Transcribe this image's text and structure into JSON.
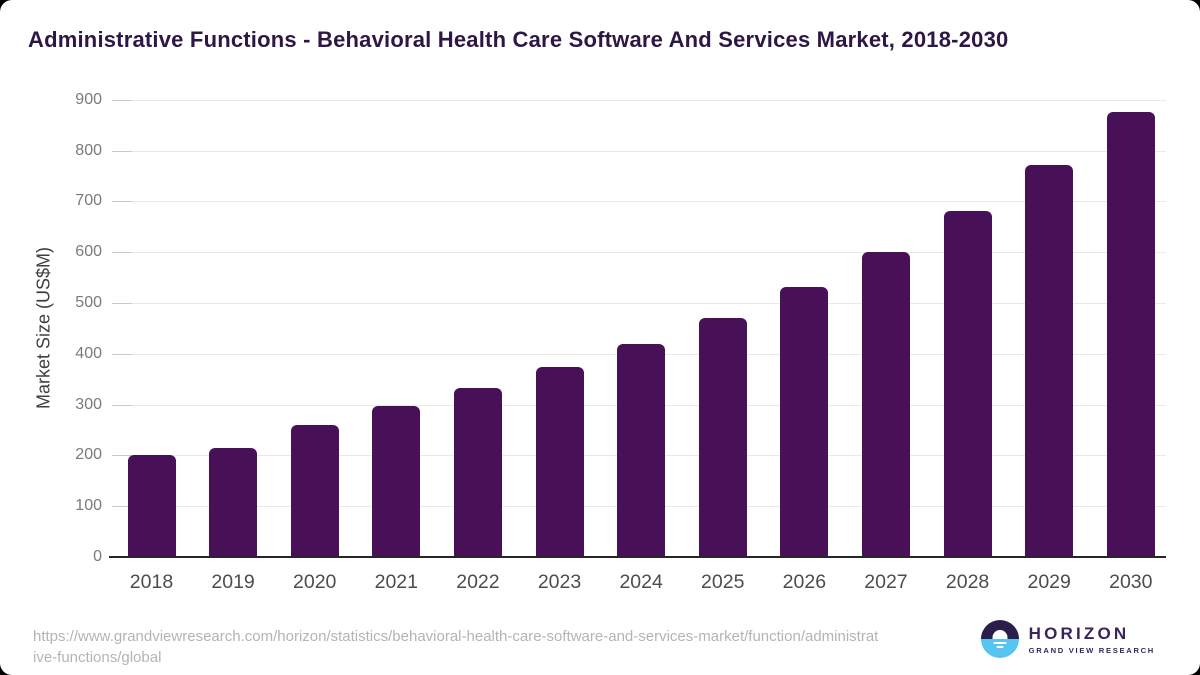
{
  "chart_data": {
    "type": "bar",
    "title": "Administrative Functions - Behavioral Health Care Software And Services Market, 2018-2030",
    "categories": [
      "2018",
      "2019",
      "2020",
      "2021",
      "2022",
      "2023",
      "2024",
      "2025",
      "2026",
      "2027",
      "2028",
      "2029",
      "2030"
    ],
    "values": [
      200,
      215,
      260,
      297,
      333,
      374,
      420,
      471,
      532,
      601,
      682,
      772,
      876
    ],
    "xlabel": "",
    "ylabel": "Market Size (US$M)",
    "ylim": [
      0,
      900
    ],
    "ytick_step": 100,
    "grid": true,
    "legend": false,
    "colors": {
      "bar": "#481056",
      "title": "#2e1745",
      "axis_line": "#262626",
      "gridline": "#e9e9e9",
      "y_tick_mark": "#c9c9c9",
      "y_tick_label": "#7a7a7a",
      "x_tick_label": "#4d4d4d",
      "y_axis_title": "#3f3f3f"
    }
  },
  "footer": {
    "source_url_lines": [
      "https://www.grandviewresearch.com/horizon/statistics/behavioral-health-care-software-and-services-market/function/administrat",
      "ive-functions/global"
    ],
    "logo": {
      "brand": "HORIZON",
      "subtitle": "GRAND VIEW RESEARCH"
    }
  }
}
